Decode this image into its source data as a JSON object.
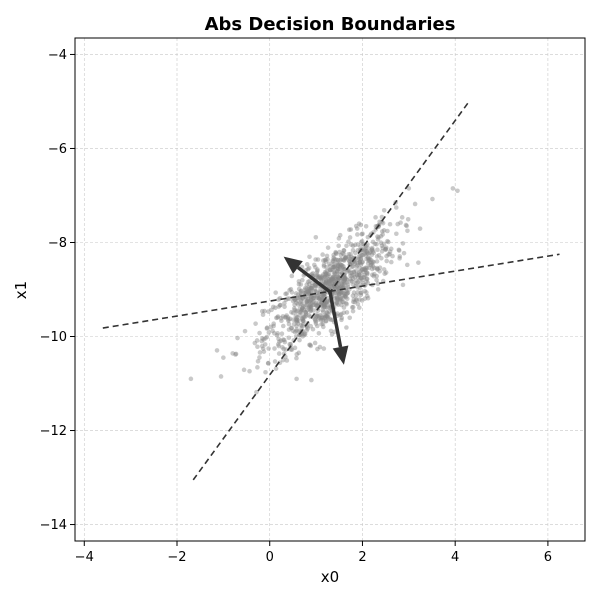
{
  "chart_data": {
    "type": "scatter",
    "title": "Abs Decision Boundaries",
    "xlabel": "x0",
    "ylabel": "x1",
    "xlim": [
      -4.2,
      6.8
    ],
    "ylim": [
      -14.35,
      -3.65
    ],
    "xticks": [
      -4,
      -2,
      0,
      2,
      4,
      6
    ],
    "yticks": [
      -14,
      -12,
      -10,
      -8,
      -6,
      -4
    ],
    "xtick_labels": [
      "−4",
      "−2",
      "0",
      "2",
      "4",
      "6"
    ],
    "ytick_labels": [
      "−14",
      "−12",
      "−10",
      "−8",
      "−6",
      "−4"
    ],
    "grid": true,
    "scatter": {
      "color": "#888888",
      "opacity": 0.45,
      "n_points": 1000,
      "center": [
        1.3,
        -9.0
      ],
      "sd": [
        0.7,
        0.65
      ],
      "correlation": 0.78,
      "outliers": [
        [
          -1.7,
          -10.9
        ],
        [
          -1.05,
          -10.85
        ],
        [
          -1.0,
          -10.45
        ],
        [
          3.95,
          -6.85
        ],
        [
          4.05,
          -6.9
        ],
        [
          3.0,
          -6.85
        ]
      ]
    },
    "boundaries": [
      {
        "x": [
          -3.6,
          6.25
        ],
        "y": [
          -9.82,
          -8.25
        ],
        "style": "dashed",
        "color": "#333333"
      },
      {
        "x": [
          -1.65,
          4.3
        ],
        "y": [
          -13.05,
          -5.0
        ],
        "style": "dashed",
        "color": "#333333"
      }
    ],
    "arrows": [
      {
        "from": [
          1.3,
          -9.05
        ],
        "to": [
          0.3,
          -8.3
        ],
        "color": "#333333"
      },
      {
        "from": [
          1.3,
          -9.05
        ],
        "to": [
          1.6,
          -10.6
        ],
        "color": "#333333"
      }
    ]
  }
}
